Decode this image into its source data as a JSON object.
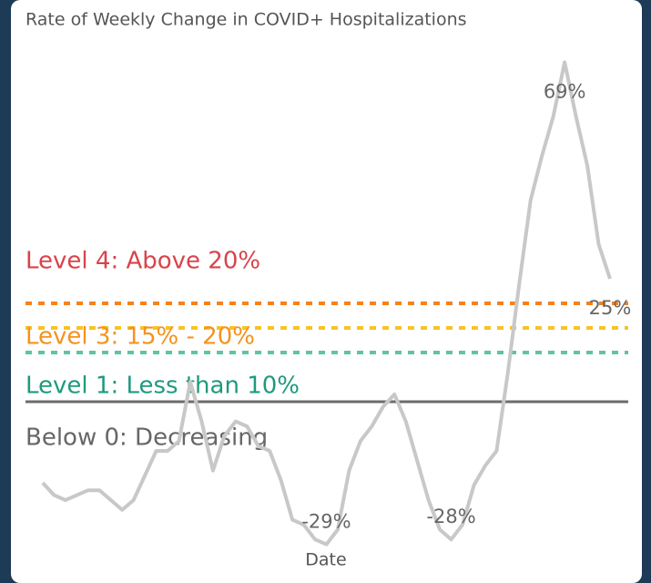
{
  "chart_data": {
    "type": "line",
    "title": "Rate of Weekly Change in COVID+ Hospitalizations",
    "x_label": "Date",
    "categories": [
      null,
      null,
      null,
      null,
      null,
      null,
      null,
      null,
      null,
      null,
      null,
      null,
      null,
      null,
      null,
      null,
      null,
      null,
      null,
      null,
      null,
      null,
      null,
      null,
      null,
      null,
      null,
      null,
      null,
      null,
      null,
      null,
      null,
      null,
      null,
      null,
      null,
      null,
      null,
      null,
      null,
      null,
      null,
      null,
      null,
      null,
      null,
      null,
      null,
      null,
      null
    ],
    "series": [
      {
        "name": null,
        "color": "#c8c8c8",
        "values": [
          -16.5,
          -19,
          -20,
          -19,
          -18,
          -18,
          -20,
          -22,
          -20,
          -15,
          -10,
          -10,
          -8,
          4,
          -4,
          -14,
          -7,
          -4,
          -5,
          -9,
          -10,
          -16,
          -24,
          -25,
          -28,
          -29,
          -26,
          -14,
          -8,
          -5,
          -1,
          1.5,
          -4,
          -12,
          -20,
          -26,
          -28,
          -25,
          -17,
          -13,
          -10,
          6,
          24,
          41,
          50,
          58,
          69,
          58,
          48,
          32,
          25
        ],
        "value_labels": [
          null,
          null,
          null,
          null,
          null,
          null,
          null,
          null,
          null,
          null,
          null,
          null,
          null,
          null,
          null,
          null,
          null,
          null,
          null,
          null,
          null,
          null,
          null,
          null,
          null,
          "-29%",
          null,
          null,
          null,
          null,
          null,
          null,
          null,
          null,
          null,
          null,
          "-28%",
          null,
          null,
          null,
          null,
          null,
          null,
          null,
          null,
          null,
          "69%",
          null,
          null,
          null,
          "25%"
        ]
      }
    ],
    "ylim": [
      -30,
      70
    ],
    "reference_lines": [
      {
        "value": 20,
        "label": "Level 4: Above 20%",
        "color": "#f5821f",
        "label_color": "#d9434b",
        "style": "dashed"
      },
      {
        "value": 15,
        "label": "Level 3: 15% - 20%",
        "color": "#f7c325",
        "label_color": "#f5921f",
        "style": "dashed"
      },
      {
        "value": 10,
        "label": "Level 1: Less than 10%",
        "color": "#5ec4a5",
        "label_color": "#1e9a7e",
        "style": "dashed"
      },
      {
        "value": 0,
        "label": "Below 0: Decreasing",
        "color": "#6b6b6b",
        "label_color": "#666666",
        "style": "solid"
      }
    ]
  }
}
